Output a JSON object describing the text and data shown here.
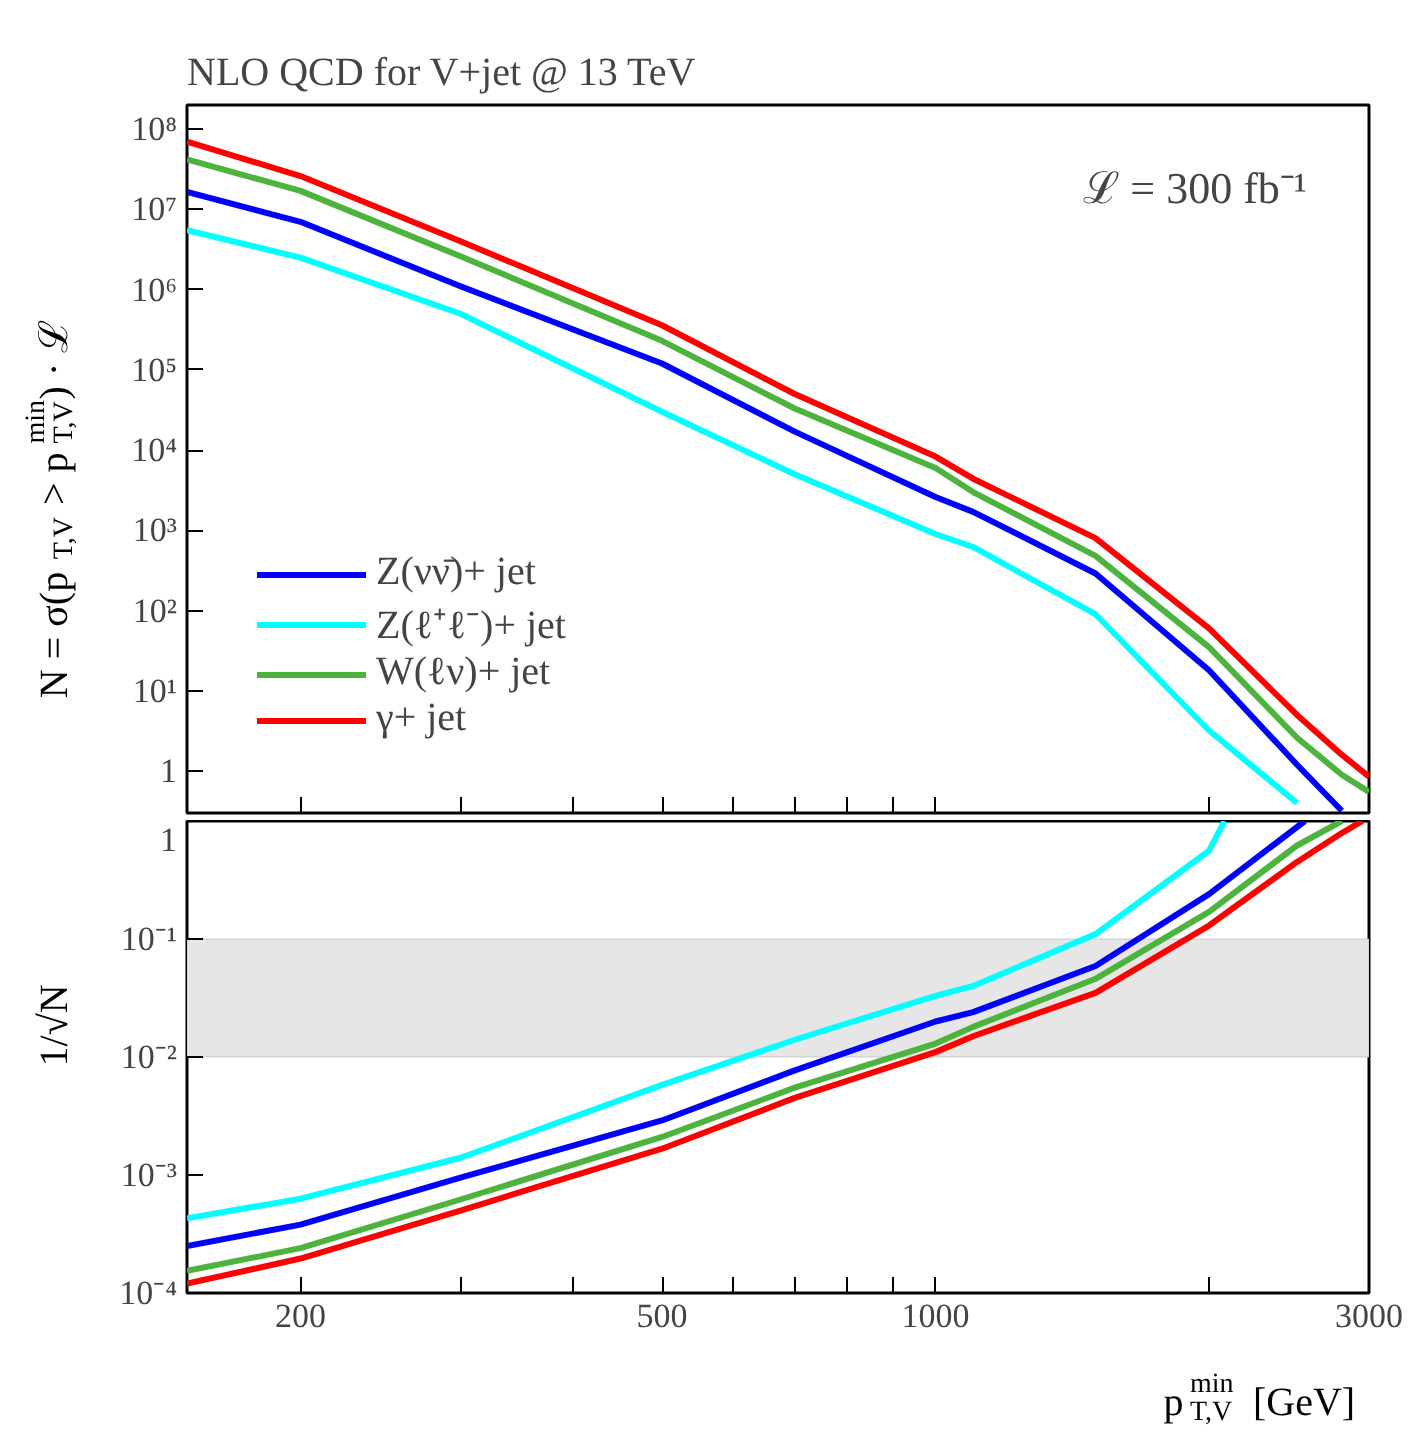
{
  "chart_data": [
    {
      "type": "line",
      "title": "NLO QCD for V+jet @ 13 TeV",
      "ylabel": "N = σ(p$_{T,V}$ > p$_{T,V}$$^{min}$) · ℒ",
      "annotations": [
        "ℒ = 300 fb⁻¹"
      ],
      "log": "xy",
      "grid": false,
      "legend": "bottom left",
      "tick_labels": "y",
      "line_style": "solid",
      "marker": "none",
      "xlim": [
        150,
        3000
      ],
      "ylim": [
        0.3,
        200000000.0
      ],
      "xticks": [
        {
          "value": 200,
          "label": null
        },
        {
          "value": 300,
          "label": null
        },
        {
          "value": 400,
          "label": null
        },
        {
          "value": 500,
          "label": null
        },
        {
          "value": 600,
          "label": null
        },
        {
          "value": 700,
          "label": null
        },
        {
          "value": 800,
          "label": null
        },
        {
          "value": 900,
          "label": null
        },
        {
          "value": 1000,
          "label": null
        },
        {
          "value": 2000,
          "label": null
        },
        {
          "value": 3000,
          "label": null
        }
      ],
      "yticks": [
        1,
        {
          "value": 10,
          "label": "10¹"
        },
        {
          "value": 100,
          "label": "10²"
        },
        {
          "value": 1000,
          "label": "10³"
        },
        {
          "value": 10000,
          "label": "10⁴"
        },
        {
          "value": 100000,
          "label": "10⁵"
        },
        {
          "value": 1000000,
          "label": "10⁶"
        },
        {
          "value": 10000000,
          "label": "10⁷"
        },
        {
          "value": 100000000,
          "label": "10⁸"
        }
      ],
      "series": [
        {
          "name": "Z(νν̄)+ jet",
          "color": "#0000ff",
          "x": [
            150,
            200,
            300,
            500,
            700,
            1000,
            1100,
            1500,
            2000,
            2500,
            2800
          ],
          "values": [
            16500000.0,
            7000000.0,
            1100000.0,
            120000.0,
            17000.0,
            2600,
            1700,
            290,
            18,
            1.2,
            0.32
          ]
        },
        {
          "name": "Z(ℓ⁺ℓ⁻)+ jet",
          "color": "#00ffff",
          "x": [
            150,
            200,
            300,
            500,
            700,
            1000,
            1100,
            1500,
            2000,
            2500
          ],
          "values": [
            5500000.0,
            2500000.0,
            500000.0,
            30000.0,
            5000,
            900,
            620,
            90,
            3.2,
            0.4
          ]
        },
        {
          "name": "W(ℓν)+ jet",
          "color": "#4cb43c",
          "x": [
            150,
            200,
            300,
            500,
            700,
            1000,
            1100,
            1500,
            2000,
            2500,
            2800,
            3000
          ],
          "values": [
            42000000.0,
            17000000.0,
            2600000.0,
            230000.0,
            33000.0,
            6000,
            3000,
            480,
            35,
            2.6,
            0.9,
            0.55
          ]
        },
        {
          "name": "γ+ jet",
          "color": "#ff0000",
          "x": [
            150,
            200,
            300,
            500,
            700,
            1000,
            1100,
            1500,
            2000,
            2500,
            2800,
            3000
          ],
          "values": [
            70000000.0,
            26000000.0,
            4000000.0,
            360000.0,
            50000.0,
            8300,
            4400,
            800,
            60,
            5,
            1.6,
            0.85
          ]
        }
      ]
    },
    {
      "type": "line",
      "xlabel": "p$_{T,V}$$^{min}$ [GeV]",
      "ylabel": "1/√N",
      "log": "xy",
      "grid": false,
      "line_style": "solid",
      "marker": "none",
      "xlim": [
        150,
        3000
      ],
      "ylim": [
        0.0001,
        1
      ],
      "xticks": [
        {
          "value": 200,
          "label": "200"
        },
        {
          "value": 300,
          "label": null
        },
        {
          "value": 400,
          "label": null
        },
        {
          "value": 500,
          "label": "500"
        },
        {
          "value": 600,
          "label": null
        },
        {
          "value": 700,
          "label": null
        },
        {
          "value": 800,
          "label": null
        },
        {
          "value": 900,
          "label": null
        },
        {
          "value": 1000,
          "label": "1000"
        },
        {
          "value": 2000,
          "label": null
        },
        {
          "value": 3000,
          "label": "3000"
        }
      ],
      "yticks": [
        {
          "value": 0.0001,
          "label": "10⁻⁴"
        },
        {
          "value": 0.001,
          "label": "10⁻³"
        },
        {
          "value": 0.01,
          "label": "10⁻²"
        },
        {
          "value": 0.1,
          "label": "10⁻¹"
        },
        1
      ],
      "bands": [
        {
          "axis": "y",
          "from": 0.01,
          "to": 0.1,
          "color": "#e6e6e6"
        }
      ],
      "series": [
        {
          "color": "#0000ff",
          "x": [
            150,
            200,
            300,
            500,
            700,
            1000,
            1100,
            1500,
            2000,
            2550
          ],
          "values": [
            0.00025,
            0.00038,
            0.00095,
            0.0029,
            0.0077,
            0.02,
            0.024,
            0.059,
            0.24,
            1
          ]
        },
        {
          "color": "#00ffff",
          "x": [
            150,
            200,
            300,
            500,
            700,
            1000,
            1100,
            1500,
            2000,
            2080
          ],
          "values": [
            0.00043,
            0.00063,
            0.0014,
            0.0058,
            0.014,
            0.033,
            0.04,
            0.11,
            0.56,
            1
          ]
        },
        {
          "color": "#4cb43c",
          "x": [
            150,
            200,
            300,
            500,
            700,
            1000,
            1100,
            1500,
            2000,
            2500,
            2800
          ],
          "values": [
            0.000154,
            0.00024,
            0.00062,
            0.0021,
            0.0055,
            0.013,
            0.018,
            0.046,
            0.17,
            0.62,
            1
          ]
        },
        {
          "color": "#ff0000",
          "x": [
            150,
            200,
            300,
            500,
            700,
            1000,
            1100,
            1500,
            2000,
            2500,
            2800,
            2950
          ],
          "values": [
            0.00012,
            0.000196,
            0.0005,
            0.00167,
            0.0045,
            0.011,
            0.015,
            0.035,
            0.13,
            0.45,
            0.79,
            1
          ]
        }
      ]
    }
  ]
}
